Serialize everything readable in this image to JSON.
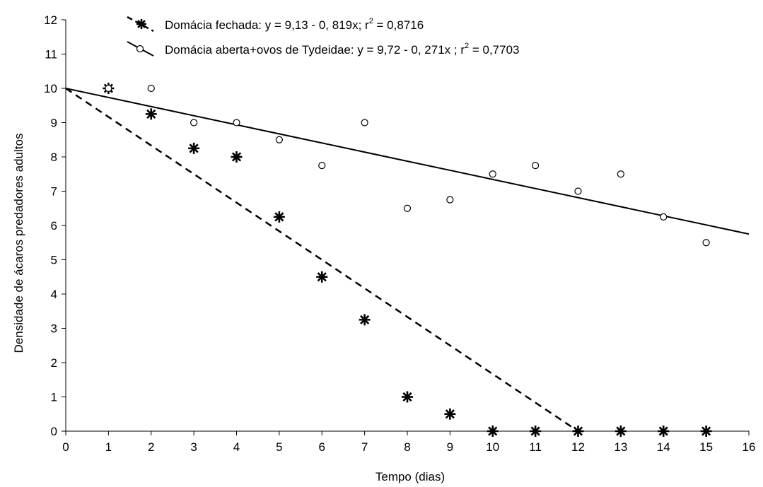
{
  "chart_data": {
    "type": "scatter",
    "title": "",
    "xlabel": "Tempo (dias)",
    "ylabel": "Densidade de ácaros predadores adultos",
    "xlim": [
      0,
      16
    ],
    "ylim": [
      0,
      12
    ],
    "xticks": [
      "0",
      "1",
      "2",
      "3",
      "4",
      "5",
      "6",
      "7",
      "8",
      "9",
      "10",
      "11",
      "12",
      "13",
      "14",
      "15",
      "16"
    ],
    "yticks": [
      "0",
      "1",
      "2",
      "3",
      "4",
      "5",
      "6",
      "7",
      "8",
      "9",
      "10",
      "11",
      "12"
    ],
    "grid": false,
    "legend_position": "top",
    "series": [
      {
        "name": "Domácia fechada",
        "legend_prefix": "Domácia fechada: y = 9,13 - 0, 819x; r",
        "legend_suffix": " = 0,8716",
        "marker": "asterisk",
        "line_style": "dashed",
        "color": "#000000",
        "x": [
          1,
          2,
          3,
          4,
          5,
          6,
          7,
          8,
          9,
          10,
          11,
          12,
          13,
          14,
          15
        ],
        "y": [
          10,
          9.25,
          8.25,
          8,
          6.25,
          4.5,
          3.25,
          1,
          0.5,
          0,
          0,
          0,
          0,
          0,
          0
        ],
        "fit_line": [
          [
            0,
            10
          ],
          [
            12,
            0
          ]
        ]
      },
      {
        "name": "Domácia aberta+ovos de Tydeidae",
        "legend_prefix": "Domácia aberta+ovos de Tydeidae: y = 9,72 - 0, 271x ; r",
        "legend_suffix": " = 0,7703",
        "marker": "open-circle",
        "line_style": "solid",
        "color": "#000000",
        "x": [
          1,
          2,
          3,
          4,
          5,
          6,
          7,
          8,
          9,
          10,
          11,
          12,
          13,
          14,
          15
        ],
        "y": [
          10,
          10,
          9,
          9,
          8.5,
          7.75,
          9,
          6.5,
          6.75,
          7.5,
          7.75,
          7,
          7.5,
          6.25,
          5.5
        ],
        "fit_line": [
          [
            0,
            10
          ],
          [
            16,
            5.75
          ]
        ]
      }
    ],
    "superscript": "2"
  }
}
